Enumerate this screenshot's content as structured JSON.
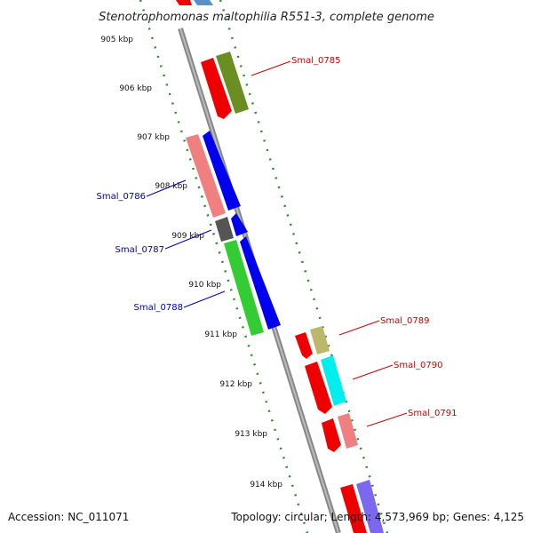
{
  "title": "Stenotrophomonas maltophilia R551-3, complete genome",
  "accession": "Accession: NC_011071",
  "topology": "Topology: circular; Length: 4,573,969 bp; Genes: 4,125",
  "kbp_labels": [
    "905 kbp",
    "906 kbp",
    "907 kbp",
    "908 kbp",
    "909 kbp",
    "910 kbp",
    "911 kbp",
    "912 kbp",
    "913 kbp",
    "914 kbp"
  ],
  "gene_labels": [
    {
      "text": "Smal_0785",
      "color": "#cc0000"
    },
    {
      "text": "Smal_0786",
      "color": "#0000aa"
    },
    {
      "text": "Smal_0787",
      "color": "#0000aa"
    },
    {
      "text": "Smal_0788",
      "color": "#0000aa"
    },
    {
      "text": "Smal_0789",
      "color": "#cc0000"
    },
    {
      "text": "Smal_0790",
      "color": "#cc0000"
    },
    {
      "text": "Smal_0791",
      "color": "#cc0000"
    }
  ],
  "colors": {
    "backbone": "#888888",
    "tick": "#2e8b2e",
    "red": "#ee0000",
    "olive": "#6b8e23",
    "pink": "#f08080",
    "blue": "#0000ee",
    "gray": "#555555",
    "green": "#33cc33",
    "khaki": "#bdb76b",
    "cyan": "#00eeee",
    "slate": "#7b68ee",
    "steel": "#5b8fc7"
  }
}
